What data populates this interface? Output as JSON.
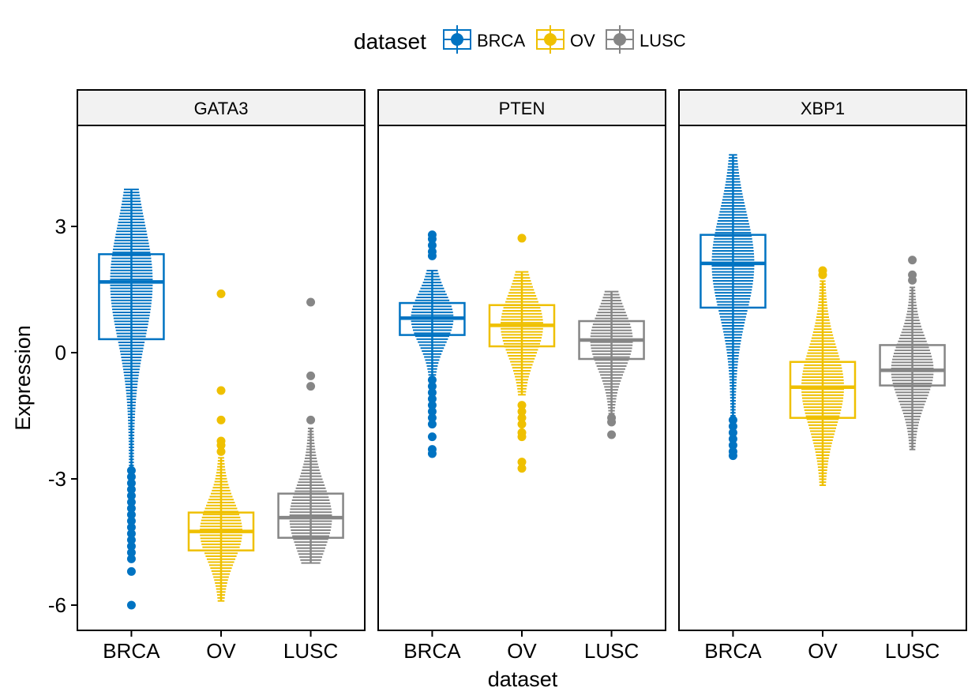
{
  "colors": {
    "BRCA": "#0073C2",
    "OV": "#EFC000",
    "LUSC": "#868686"
  },
  "chart_data": {
    "type": "boxplot",
    "xlabel": "dataset",
    "ylabel": "Expression",
    "ylim": [
      -6.6,
      5.4
    ],
    "yticks": [
      -6,
      -3,
      0,
      3
    ],
    "ytick_labels": [
      "-6",
      "-3",
      "0",
      "3"
    ],
    "categories": [
      "BRCA",
      "OV",
      "LUSC"
    ],
    "legend": {
      "title": "dataset",
      "entries": [
        "BRCA",
        "OV",
        "LUSC"
      ],
      "position": "top"
    },
    "panels": [
      {
        "title": "GATA3",
        "boxes": [
          {
            "group": "BRCA",
            "q1": 0.32,
            "median": 1.68,
            "q3": 2.34,
            "range": [
              -2.75,
              3.88
            ],
            "outliers": [
              -2.8,
              -2.95,
              -3.1,
              -3.25,
              -3.4,
              -3.55,
              -3.7,
              -3.85,
              -4.0,
              -4.15,
              -4.3,
              -4.45,
              -4.6,
              -4.75,
              -4.9,
              -5.2,
              -6.0
            ]
          },
          {
            "group": "OV",
            "q1": -4.7,
            "median": -4.25,
            "q3": -3.8,
            "range": [
              -5.9,
              -2.5
            ],
            "outliers": [
              1.4,
              -0.9,
              -1.6,
              -2.1,
              -2.2,
              -2.35
            ]
          },
          {
            "group": "LUSC",
            "q1": -4.4,
            "median": -3.92,
            "q3": -3.35,
            "range": [
              -5.0,
              -1.8
            ],
            "outliers": [
              1.2,
              -0.55,
              -0.8,
              -1.6
            ]
          }
        ]
      },
      {
        "title": "PTEN",
        "boxes": [
          {
            "group": "BRCA",
            "q1": 0.42,
            "median": 0.82,
            "q3": 1.18,
            "range": [
              -0.6,
              1.95
            ],
            "outliers": [
              2.8,
              2.7,
              2.55,
              2.4,
              2.3,
              -0.65,
              -0.8,
              -0.95,
              -1.1,
              -1.25,
              -1.4,
              -1.55,
              -1.7,
              -2.0,
              -2.3,
              -2.4
            ]
          },
          {
            "group": "OV",
            "q1": 0.15,
            "median": 0.65,
            "q3": 1.13,
            "range": [
              -1.0,
              1.92
            ],
            "outliers": [
              2.72,
              -1.25,
              -1.4,
              -1.55,
              -1.7,
              -1.9,
              -2.0,
              -2.6,
              -2.75
            ]
          },
          {
            "group": "LUSC",
            "q1": -0.15,
            "median": 0.3,
            "q3": 0.75,
            "range": [
              -1.45,
              1.45
            ],
            "outliers": [
              -1.55,
              -1.65,
              -1.95
            ]
          }
        ]
      },
      {
        "title": "XBP1",
        "boxes": [
          {
            "group": "BRCA",
            "q1": 1.07,
            "median": 2.12,
            "q3": 2.8,
            "range": [
              -1.5,
              4.7
            ],
            "outliers": [
              -1.6,
              -1.75,
              -1.9,
              -2.05,
              -2.2,
              -2.35,
              -2.45
            ]
          },
          {
            "group": "OV",
            "q1": -1.55,
            "median": -0.82,
            "q3": -0.22,
            "range": [
              -3.15,
              1.7
            ],
            "outliers": [
              1.95,
              1.85
            ]
          },
          {
            "group": "LUSC",
            "q1": -0.78,
            "median": -0.42,
            "q3": 0.18,
            "range": [
              -2.3,
              1.55
            ],
            "outliers": [
              2.2,
              1.85,
              1.72
            ]
          }
        ]
      }
    ]
  }
}
